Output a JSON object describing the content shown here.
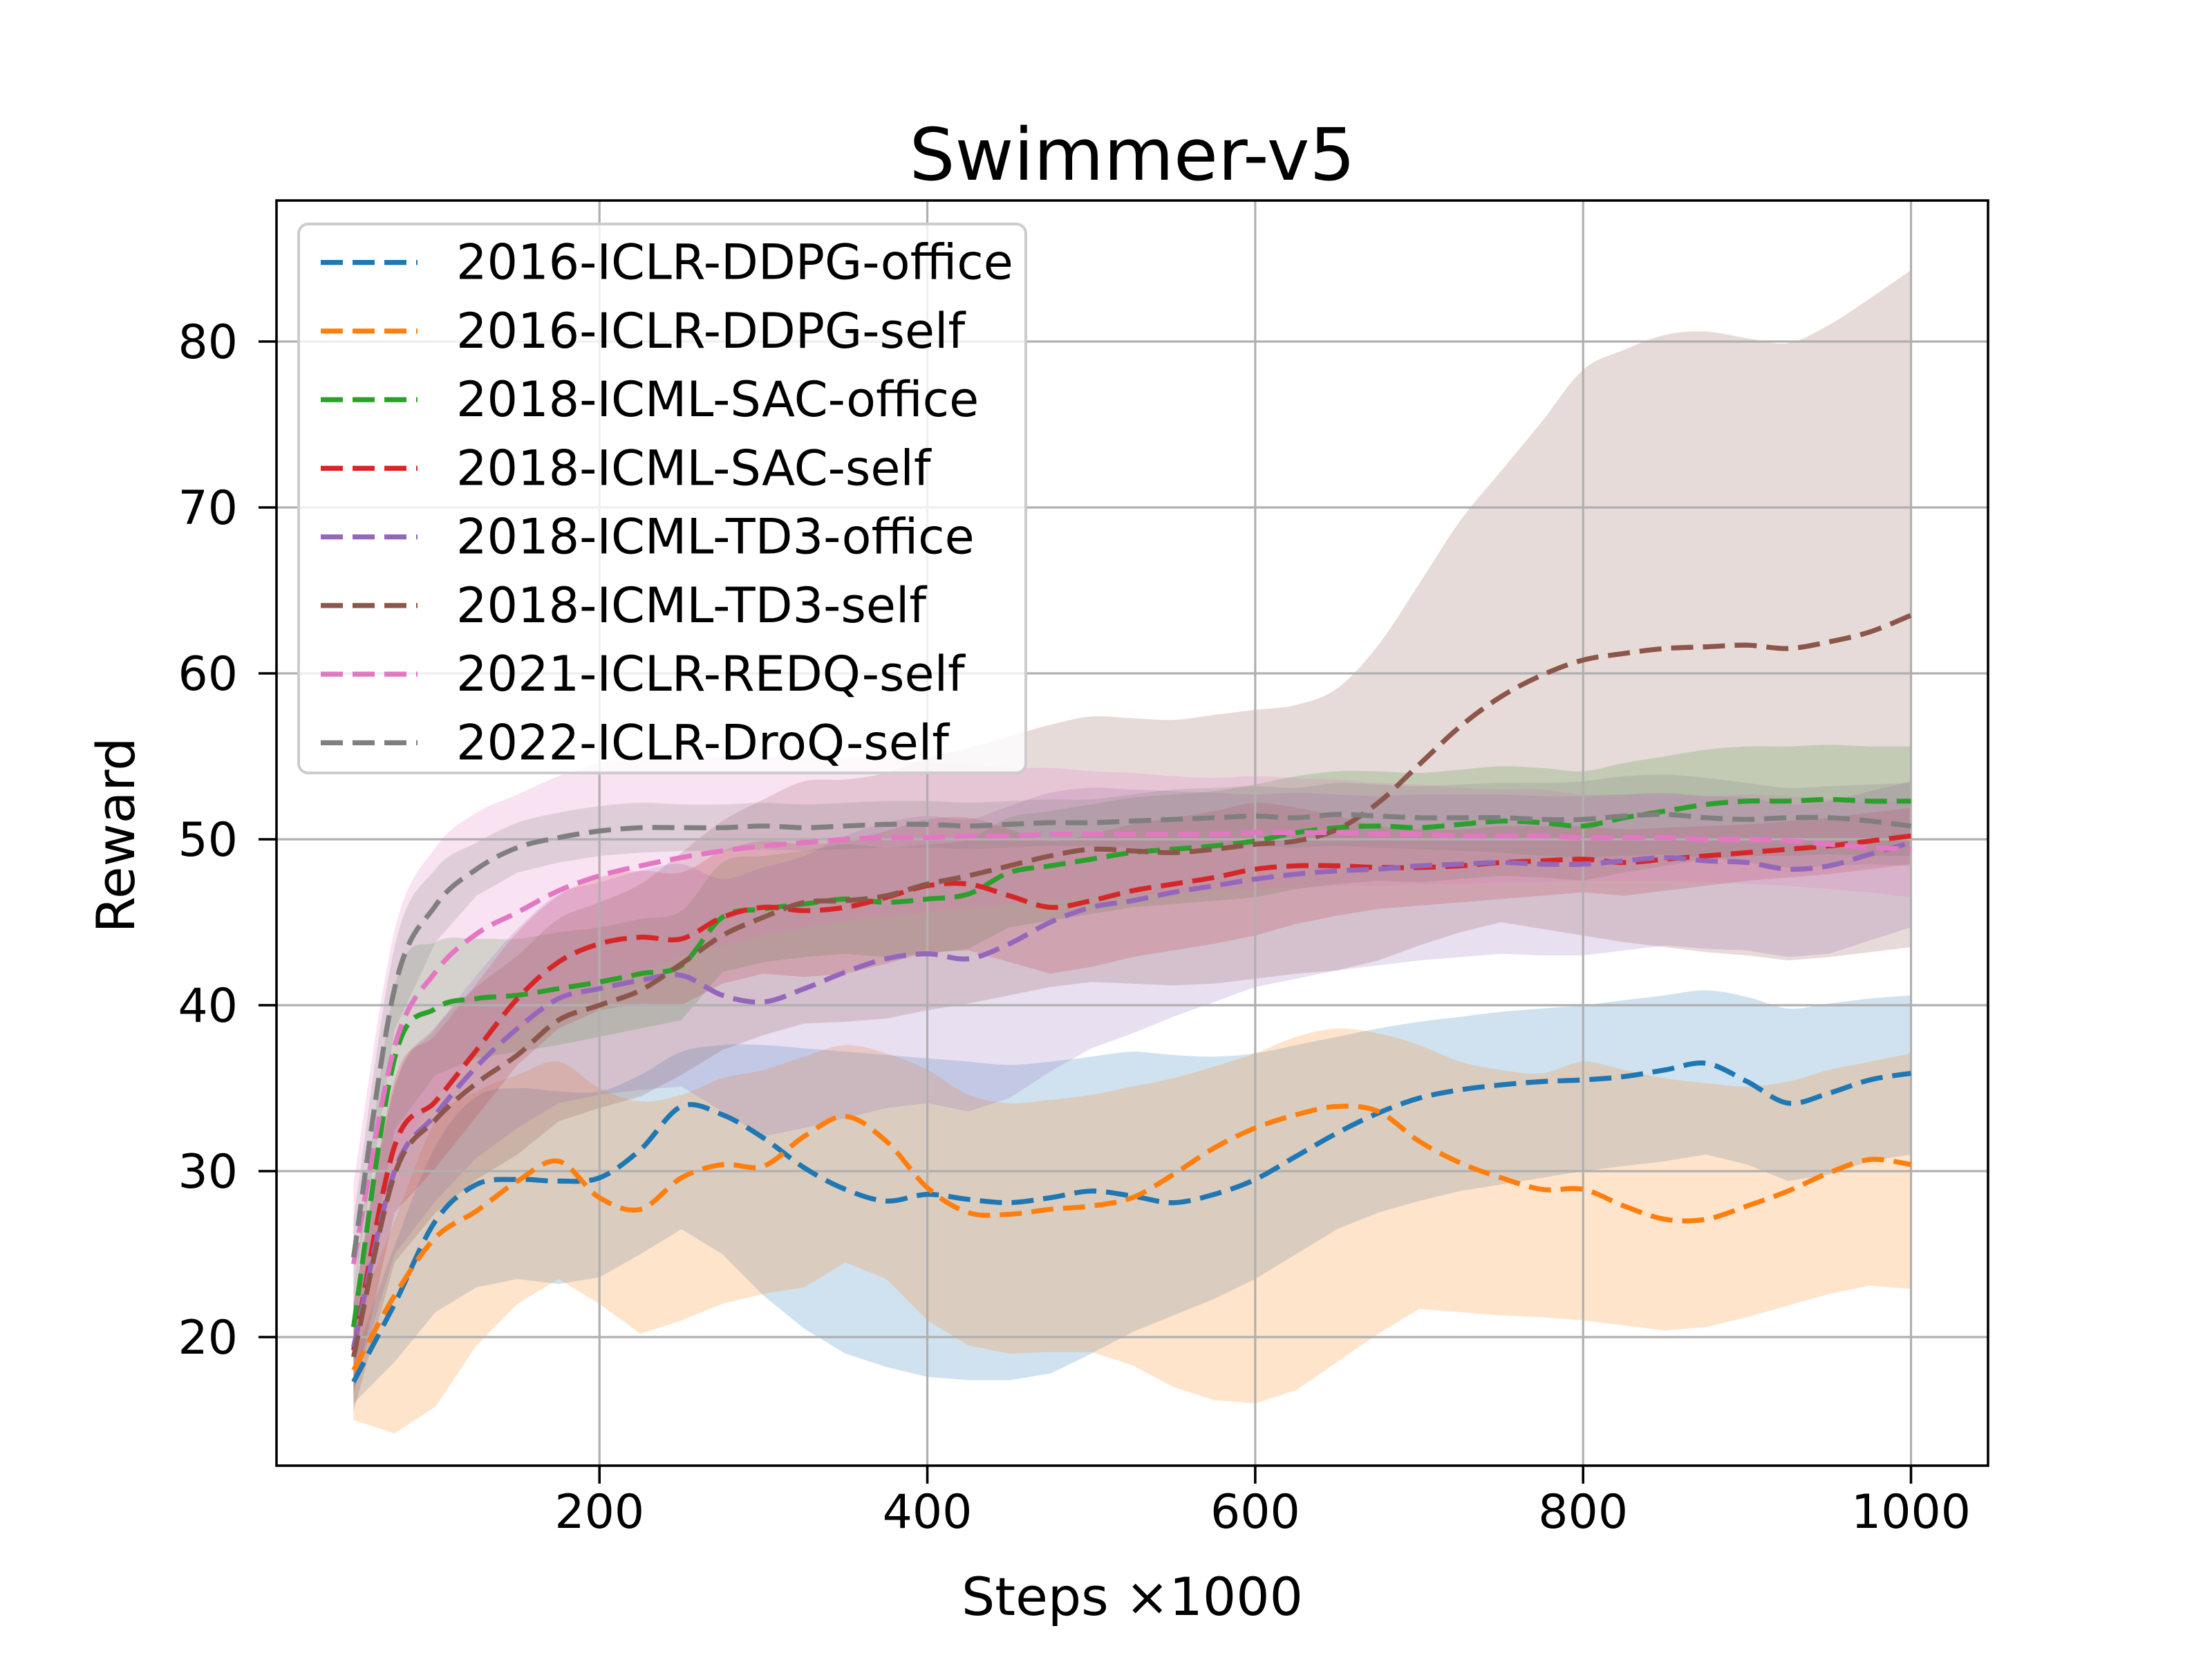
{
  "chart_data": {
    "type": "line",
    "title": "Swimmer-v5",
    "xlabel": "Steps ×1000",
    "ylabel": "Reward",
    "grid": true,
    "legend_position": "upper left",
    "xlim": [
      3,
      1047
    ],
    "ylim": [
      12.25,
      88.5
    ],
    "xticks": [
      200,
      400,
      600,
      800,
      1000
    ],
    "yticks": [
      20,
      30,
      40,
      50,
      60,
      70,
      80
    ],
    "band_alpha": 0.21,
    "grid_color": "#b0b0b0",
    "x": [
      50,
      75,
      100,
      125,
      150,
      175,
      200,
      225,
      250,
      275,
      300,
      325,
      350,
      375,
      400,
      425,
      450,
      475,
      500,
      525,
      550,
      575,
      600,
      625,
      650,
      675,
      700,
      725,
      750,
      775,
      800,
      825,
      850,
      875,
      900,
      925,
      950,
      975,
      1000
    ],
    "series": [
      {
        "name": "2016-ICLR-DDPG-office",
        "color": "#1f77b4",
        "mean": [
          17.3,
          22.0,
          27.0,
          29.2,
          29.5,
          29.4,
          29.6,
          31.3,
          33.9,
          33.4,
          32.0,
          30.2,
          28.9,
          28.2,
          28.6,
          28.3,
          28.1,
          28.4,
          28.8,
          28.5,
          28.1,
          28.6,
          29.5,
          30.9,
          32.3,
          33.5,
          34.4,
          34.9,
          35.2,
          35.4,
          35.5,
          35.7,
          36.1,
          36.5,
          35.4,
          34.1,
          34.7,
          35.5,
          35.9
        ],
        "lo": [
          16.0,
          18.5,
          21.5,
          23.0,
          23.5,
          23.2,
          23.6,
          25.0,
          26.5,
          25.0,
          22.5,
          20.5,
          19.0,
          18.2,
          17.6,
          17.4,
          17.4,
          17.8,
          19.0,
          20.3,
          21.3,
          22.3,
          23.5,
          25.0,
          26.5,
          27.5,
          28.2,
          28.8,
          29.2,
          29.6,
          30.0,
          30.3,
          30.6,
          31.0,
          30.4,
          29.4,
          29.8,
          30.6,
          31.0
        ],
        "hi": [
          18.6,
          25.5,
          31.5,
          34.5,
          35.0,
          34.8,
          34.8,
          35.8,
          37.2,
          37.6,
          37.6,
          37.4,
          37.2,
          37.0,
          36.8,
          36.6,
          36.4,
          36.6,
          36.9,
          37.2,
          37.0,
          36.9,
          37.1,
          37.6,
          38.1,
          38.6,
          39.0,
          39.3,
          39.6,
          39.8,
          40.0,
          40.3,
          40.6,
          40.9,
          40.5,
          39.8,
          40.1,
          40.4,
          40.6
        ]
      },
      {
        "name": "2016-ICLR-DDPG-self",
        "color": "#ff7f0e",
        "mean": [
          18.0,
          22.5,
          26.0,
          27.6,
          29.4,
          30.6,
          28.4,
          27.7,
          29.6,
          30.4,
          30.3,
          32.1,
          33.3,
          31.8,
          29.0,
          27.5,
          27.4,
          27.7,
          27.9,
          28.4,
          29.8,
          31.4,
          32.6,
          33.4,
          33.9,
          33.6,
          31.8,
          30.5,
          29.6,
          28.9,
          28.9,
          27.9,
          27.1,
          27.1,
          27.9,
          28.8,
          29.9,
          30.7,
          30.4
        ],
        "lo": [
          15.0,
          14.2,
          15.8,
          19.5,
          22.0,
          23.5,
          22.0,
          20.2,
          21.0,
          22.0,
          22.6,
          23.0,
          24.5,
          23.5,
          21.0,
          19.5,
          19.0,
          19.1,
          19.1,
          18.3,
          17.0,
          16.2,
          16.0,
          16.8,
          18.5,
          20.2,
          21.7,
          21.5,
          21.3,
          21.2,
          21.0,
          20.7,
          20.4,
          20.6,
          21.2,
          21.9,
          22.6,
          23.1,
          22.9
        ],
        "hi": [
          20.8,
          27.0,
          33.0,
          34.8,
          35.8,
          36.6,
          35.0,
          34.2,
          34.6,
          35.6,
          36.1,
          36.9,
          37.6,
          37.1,
          36.1,
          34.6,
          34.1,
          34.3,
          34.6,
          35.1,
          35.6,
          36.3,
          37.1,
          38.1,
          38.6,
          38.3,
          37.6,
          36.6,
          36.1,
          35.9,
          36.6,
          36.1,
          35.6,
          35.3,
          35.1,
          35.4,
          36.1,
          36.6,
          37.1
        ]
      },
      {
        "name": "2018-ICML-SAC-office",
        "color": "#2ca02c",
        "mean": [
          20.6,
          36.8,
          39.8,
          40.4,
          40.6,
          41.0,
          41.4,
          41.9,
          42.4,
          45.3,
          45.8,
          46.1,
          46.4,
          46.2,
          46.4,
          46.7,
          48.0,
          48.4,
          48.8,
          49.2,
          49.4,
          49.6,
          49.9,
          50.4,
          50.7,
          50.8,
          50.7,
          50.9,
          51.1,
          51.0,
          50.8,
          51.3,
          51.7,
          52.1,
          52.3,
          52.3,
          52.4,
          52.3,
          52.3
        ],
        "lo": [
          18.5,
          32.5,
          35.8,
          36.8,
          37.2,
          37.6,
          38.1,
          38.6,
          39.1,
          42.0,
          42.6,
          42.9,
          43.1,
          42.9,
          43.1,
          43.4,
          44.7,
          45.1,
          45.5,
          45.9,
          46.1,
          46.3,
          46.5,
          47.0,
          47.3,
          47.5,
          47.4,
          47.6,
          47.8,
          47.7,
          47.5,
          48.0,
          48.4,
          48.8,
          49.0,
          49.0,
          49.1,
          49.0,
          49.0
        ],
        "hi": [
          22.7,
          41.1,
          43.8,
          44.0,
          44.0,
          44.4,
          44.7,
          45.2,
          45.7,
          48.6,
          49.0,
          49.3,
          49.7,
          49.5,
          49.7,
          50.0,
          51.3,
          51.7,
          52.1,
          52.5,
          52.7,
          52.9,
          53.3,
          53.8,
          54.1,
          54.1,
          54.0,
          54.2,
          54.4,
          54.3,
          54.1,
          54.6,
          55.0,
          55.4,
          55.6,
          55.6,
          55.7,
          55.6,
          55.6
        ]
      },
      {
        "name": "2018-ICML-SAC-self",
        "color": "#d62728",
        "mean": [
          19.2,
          31.5,
          34.2,
          37.3,
          40.4,
          42.6,
          43.7,
          44.1,
          44.0,
          45.3,
          45.9,
          45.7,
          45.9,
          46.5,
          47.2,
          47.3,
          46.6,
          45.9,
          46.3,
          46.9,
          47.3,
          47.7,
          48.2,
          48.4,
          48.4,
          48.3,
          48.3,
          48.4,
          48.6,
          48.7,
          48.8,
          48.6,
          48.8,
          49.0,
          49.2,
          49.4,
          49.6,
          49.9,
          50.2
        ],
        "lo": [
          16.5,
          27.5,
          30.2,
          33.3,
          36.4,
          38.6,
          39.7,
          40.1,
          40.0,
          41.3,
          41.9,
          41.7,
          41.9,
          42.5,
          43.2,
          43.3,
          42.6,
          41.9,
          42.3,
          42.9,
          43.3,
          43.7,
          44.2,
          44.9,
          45.4,
          45.8,
          46.0,
          46.2,
          46.4,
          46.6,
          46.8,
          46.6,
          46.9,
          47.2,
          47.5,
          47.7,
          47.9,
          48.2,
          48.5
        ],
        "hi": [
          22.0,
          35.5,
          38.2,
          41.3,
          44.4,
          46.6,
          47.7,
          48.1,
          48.0,
          49.3,
          49.9,
          49.7,
          49.9,
          50.5,
          51.2,
          51.3,
          50.6,
          49.9,
          50.3,
          50.9,
          51.3,
          51.7,
          52.2,
          51.9,
          51.4,
          50.8,
          50.6,
          50.6,
          50.8,
          50.8,
          50.8,
          50.6,
          50.7,
          50.8,
          50.9,
          51.1,
          51.3,
          51.6,
          51.9
        ]
      },
      {
        "name": "2018-ICML-TD3-office",
        "color": "#9467bd",
        "mean": [
          19.4,
          30.0,
          33.4,
          36.3,
          38.6,
          40.4,
          41.0,
          41.5,
          41.8,
          40.6,
          40.2,
          41.0,
          42.0,
          42.8,
          43.1,
          42.8,
          43.7,
          45.0,
          45.9,
          46.3,
          46.8,
          47.2,
          47.6,
          47.9,
          48.1,
          48.2,
          48.4,
          48.5,
          48.6,
          48.5,
          48.5,
          48.7,
          48.9,
          48.7,
          48.6,
          48.2,
          48.4,
          49.1,
          49.8
        ],
        "lo": [
          16.8,
          25.0,
          28.2,
          30.8,
          32.6,
          34.1,
          34.6,
          34.9,
          35.1,
          33.6,
          32.1,
          32.6,
          33.2,
          33.8,
          34.1,
          33.6,
          34.4,
          36.0,
          37.4,
          38.3,
          39.3,
          40.2,
          41.1,
          41.6,
          42.1,
          42.4,
          42.7,
          42.9,
          43.1,
          43.0,
          43.0,
          43.3,
          43.6,
          43.4,
          43.3,
          42.9,
          43.1,
          43.9,
          44.7
        ],
        "hi": [
          22.0,
          35.0,
          38.6,
          41.8,
          44.6,
          46.7,
          47.4,
          48.1,
          48.5,
          47.6,
          48.3,
          49.0,
          50.2,
          51.0,
          51.4,
          51.2,
          52.0,
          52.8,
          53.1,
          53.0,
          52.9,
          52.8,
          52.7,
          52.8,
          52.7,
          52.6,
          52.7,
          52.7,
          52.7,
          52.6,
          52.6,
          52.7,
          52.8,
          52.6,
          52.5,
          52.1,
          52.3,
          52.9,
          53.5
        ]
      },
      {
        "name": "2018-ICML-TD3-self",
        "color": "#8c564b",
        "mean": [
          18.8,
          29.8,
          33.1,
          35.3,
          37.0,
          39.1,
          40.0,
          40.9,
          42.5,
          44.2,
          45.3,
          46.2,
          46.3,
          46.6,
          47.3,
          47.8,
          48.4,
          49.0,
          49.4,
          49.3,
          49.2,
          49.4,
          49.7,
          49.9,
          50.6,
          52.2,
          54.5,
          56.8,
          58.6,
          59.9,
          60.8,
          61.2,
          61.5,
          61.6,
          61.7,
          61.5,
          61.9,
          62.5,
          63.5
        ],
        "lo": [
          15.5,
          24.5,
          27.5,
          29.5,
          31.0,
          33.0,
          33.8,
          34.5,
          35.8,
          37.3,
          38.2,
          38.9,
          39.0,
          39.2,
          39.7,
          40.1,
          40.6,
          41.1,
          41.4,
          41.3,
          41.2,
          41.3,
          41.6,
          41.9,
          42.1,
          42.7,
          43.6,
          44.4,
          45.0,
          44.6,
          44.2,
          43.8,
          43.5,
          43.2,
          43.0,
          42.7,
          42.9,
          43.2,
          43.5
        ],
        "hi": [
          22.1,
          35.1,
          38.7,
          41.1,
          43.0,
          45.2,
          46.2,
          47.3,
          49.2,
          51.1,
          52.4,
          53.5,
          53.6,
          54.0,
          54.9,
          55.5,
          56.2,
          56.9,
          57.4,
          57.3,
          57.2,
          57.5,
          57.8,
          58.1,
          59.1,
          61.7,
          65.4,
          69.2,
          72.2,
          75.2,
          78.3,
          79.5,
          80.4,
          80.6,
          80.2,
          79.9,
          81.0,
          82.6,
          84.3
        ]
      },
      {
        "name": "2021-ICLR-REDQ-self",
        "color": "#e377c2",
        "mean": [
          24.4,
          37.5,
          42.0,
          44.3,
          45.6,
          46.9,
          47.8,
          48.4,
          48.9,
          49.3,
          49.6,
          49.8,
          50.0,
          50.1,
          50.1,
          50.2,
          50.2,
          50.3,
          50.3,
          50.3,
          50.3,
          50.3,
          50.4,
          50.4,
          50.4,
          50.3,
          50.3,
          50.2,
          50.2,
          50.2,
          50.1,
          50.1,
          50.1,
          50.0,
          50.0,
          49.9,
          49.7,
          49.5,
          49.4
        ],
        "lo": [
          19.5,
          30.5,
          34.5,
          37.0,
          38.5,
          40.0,
          41.0,
          42.0,
          42.9,
          43.6,
          44.2,
          44.7,
          45.1,
          45.4,
          45.6,
          45.9,
          46.1,
          46.3,
          46.5,
          46.6,
          46.8,
          46.9,
          47.0,
          47.1,
          47.2,
          47.2,
          47.3,
          47.3,
          47.4,
          47.4,
          47.5,
          47.5,
          47.5,
          47.4,
          47.3,
          47.2,
          47.0,
          46.8,
          46.5
        ],
        "hi": [
          29.3,
          44.5,
          49.5,
          51.6,
          52.7,
          53.8,
          54.6,
          54.8,
          54.9,
          55.0,
          55.0,
          54.9,
          54.9,
          54.8,
          54.6,
          54.5,
          54.3,
          54.3,
          54.1,
          54.0,
          53.8,
          53.7,
          53.8,
          53.7,
          53.6,
          53.4,
          53.3,
          53.1,
          53.0,
          53.0,
          52.7,
          52.7,
          52.7,
          52.6,
          52.7,
          52.6,
          52.4,
          52.2,
          52.3
        ]
      },
      {
        "name": "2022-ICLR-DroQ-self",
        "color": "#7f7f7f",
        "mean": [
          24.8,
          41.0,
          46.0,
          48.2,
          49.5,
          50.1,
          50.5,
          50.7,
          50.7,
          50.7,
          50.8,
          50.7,
          50.8,
          50.9,
          50.9,
          50.8,
          50.9,
          51.0,
          51.0,
          51.1,
          51.2,
          51.3,
          51.4,
          51.3,
          51.5,
          51.4,
          51.3,
          51.3,
          51.3,
          51.2,
          51.2,
          51.4,
          51.5,
          51.3,
          51.2,
          51.3,
          51.3,
          51.1,
          50.8
        ],
        "lo": [
          22.5,
          38.5,
          43.8,
          46.6,
          48.0,
          48.6,
          49.0,
          49.2,
          49.3,
          49.3,
          49.4,
          49.3,
          49.4,
          49.5,
          49.5,
          49.4,
          49.5,
          49.6,
          49.6,
          49.5,
          49.4,
          49.5,
          49.6,
          49.5,
          49.6,
          49.5,
          49.4,
          49.3,
          49.2,
          49.0,
          48.9,
          49.0,
          49.1,
          48.9,
          48.6,
          48.3,
          48.4,
          48.5,
          48.4
        ],
        "hi": [
          27.1,
          43.5,
          48.2,
          49.8,
          51.0,
          51.6,
          52.0,
          52.2,
          52.1,
          52.1,
          52.2,
          52.1,
          52.2,
          52.3,
          52.3,
          52.2,
          52.3,
          52.4,
          52.4,
          52.7,
          53.0,
          53.1,
          53.2,
          53.1,
          53.4,
          53.3,
          53.2,
          53.3,
          53.4,
          53.4,
          53.5,
          53.8,
          53.9,
          53.7,
          53.4,
          53.1,
          53.2,
          53.3,
          53.4
        ]
      }
    ]
  }
}
